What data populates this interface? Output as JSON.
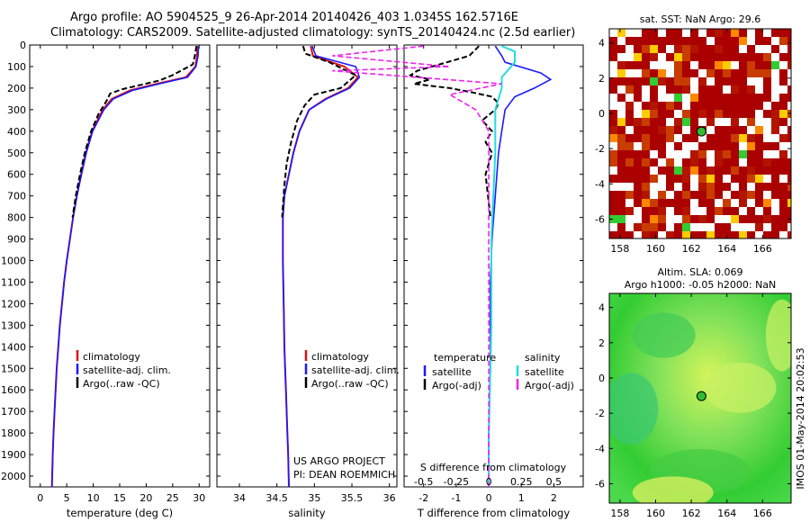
{
  "header": {
    "line1": "Argo profile: AO 5904525_9 26-Apr-2014 20140426_403 1.0345S 162.5716E",
    "line2": "Climatology: CARS2009. Satellite-adjusted climatology: synTS_20140424.nc (2.5d earlier)"
  },
  "stamp": "IMOS 01-May-2014 20:02:53",
  "colors": {
    "climatology": "#dd1111",
    "satellite": "#1a1aff",
    "argo": "#000000",
    "sal_sat": "#22dddd",
    "sal_argo": "#ee22ee"
  },
  "chart_data": [
    {
      "type": "line",
      "id": "temperature",
      "xlabel": "temperature (deg C)",
      "xlim": [
        -2,
        32
      ],
      "xticks": [
        "0",
        "5",
        "10",
        "15",
        "20",
        "25",
        "30"
      ],
      "ylim": [
        0,
        2050
      ],
      "yticks": [
        "0",
        "100",
        "200",
        "300",
        "400",
        "500",
        "600",
        "700",
        "800",
        "900",
        "1000",
        "1100",
        "1200",
        "1300",
        "1400",
        "1500",
        "1600",
        "1700",
        "1800",
        "1900",
        "2000"
      ],
      "legend": [
        "climatology",
        "satellite-adj. clim.",
        "Argo(..raw -QC)"
      ],
      "series": [
        {
          "name": "climatology",
          "x": [
            29.7,
            29.6,
            29.3,
            27.5,
            22,
            17,
            13.5,
            11.8,
            9.8,
            8.6,
            7.7,
            6.9,
            6.2,
            5.6,
            5.0,
            4.5,
            4.1,
            3.7,
            3.4,
            3.1,
            2.9,
            2.7,
            2.5,
            2.35,
            2.2
          ],
          "y": [
            5,
            50,
            100,
            150,
            180,
            210,
            250,
            300,
            400,
            500,
            600,
            700,
            800,
            900,
            1000,
            1100,
            1200,
            1300,
            1400,
            1500,
            1600,
            1700,
            1800,
            1900,
            2050
          ]
        },
        {
          "name": "satellite-adj. clim.",
          "x": [
            29.9,
            29.8,
            29.4,
            27.8,
            22.5,
            17.5,
            13.8,
            12,
            9.9,
            8.7,
            7.8,
            6.9,
            6.2,
            5.6,
            5.0,
            4.5,
            4.1,
            3.7,
            3.4,
            3.1,
            2.9,
            2.7,
            2.5,
            2.35,
            2.2
          ],
          "y": [
            5,
            50,
            100,
            150,
            180,
            210,
            250,
            300,
            400,
            500,
            600,
            700,
            800,
            900,
            1000,
            1100,
            1200,
            1300,
            1400,
            1500,
            1600,
            1700,
            1800,
            1900,
            2050
          ]
        },
        {
          "name": "Argo(..raw -QC)",
          "x": [
            29.5,
            29.2,
            28.8,
            25,
            22.5,
            19,
            15.5,
            13.2,
            12.5,
            11,
            9.6,
            8.4,
            7.5,
            6.7,
            6.1
          ],
          "y": [
            5,
            50,
            90,
            140,
            165,
            185,
            205,
            225,
            260,
            320,
            400,
            500,
            600,
            700,
            800
          ]
        }
      ]
    },
    {
      "type": "line",
      "id": "salinity",
      "xlabel": "salinity",
      "xlim": [
        33.7,
        36.1
      ],
      "xticks": [
        "34",
        "34.5",
        "35",
        "35.5",
        "36"
      ],
      "ylim": [
        0,
        2050
      ],
      "legend": [
        "climatology",
        "satellite-adj. clim.",
        "Argo(..raw -QC)"
      ],
      "annotations": [
        "US ARGO PROJECT",
        "PI: DEAN ROEMMICH"
      ],
      "series": [
        {
          "name": "climatology",
          "x": [
            34.95,
            34.98,
            35.4,
            35.58,
            35.45,
            35.15,
            34.93,
            34.8,
            34.72,
            34.66,
            34.6,
            34.58,
            34.58,
            34.59,
            34.6,
            34.61,
            34.62,
            34.63,
            34.64,
            34.65,
            34.66
          ],
          "y": [
            5,
            50,
            100,
            150,
            200,
            250,
            300,
            400,
            500,
            600,
            700,
            800,
            1000,
            1200,
            1400,
            1500,
            1600,
            1700,
            1800,
            1900,
            2050
          ]
        },
        {
          "name": "satellite-adj. clim.",
          "x": [
            34.97,
            35.02,
            35.55,
            35.6,
            35.47,
            35.16,
            34.93,
            34.8,
            34.72,
            34.66,
            34.6,
            34.58,
            34.58,
            34.59,
            34.6,
            34.61,
            34.62,
            34.63,
            34.64,
            34.65,
            34.66
          ],
          "y": [
            5,
            50,
            100,
            150,
            200,
            250,
            300,
            400,
            500,
            600,
            700,
            800,
            1000,
            1200,
            1400,
            1500,
            1600,
            1700,
            1800,
            1900,
            2050
          ]
        },
        {
          "name": "Argo(..raw -QC)",
          "x": [
            34.85,
            34.88,
            35.2,
            35.55,
            35.35,
            35.0,
            34.87,
            34.77,
            34.69,
            34.63,
            34.6,
            34.58,
            34.57
          ],
          "y": [
            5,
            40,
            80,
            140,
            200,
            230,
            280,
            350,
            450,
            550,
            650,
            750,
            800
          ]
        }
      ]
    },
    {
      "type": "line",
      "id": "difference",
      "xlabel": "T difference from climatology",
      "top_axis_label": "S difference from climatology",
      "xlim": [
        -2.6,
        2.9
      ],
      "xticks": [
        "-2",
        "-1",
        "0",
        "1",
        "2"
      ],
      "sticks": [
        "-0.5",
        "-0.25",
        "0",
        "0.25",
        "0.5"
      ],
      "ylim": [
        0,
        2050
      ],
      "legend_titles": [
        "temperature",
        "salinity"
      ],
      "legend": [
        "satellite",
        "Argo(-adj)",
        "satellite",
        "Argo(-adj)"
      ],
      "series": [
        {
          "name": "satellite",
          "x": [
            0.2,
            0.4,
            0.5,
            1.6,
            1.9,
            1.4,
            0.8,
            0.5,
            0.4,
            0.3,
            0.2,
            0.1,
            0.05,
            0.05,
            0.05,
            0.0,
            0.0
          ],
          "y": [
            5,
            50,
            80,
            130,
            160,
            200,
            240,
            300,
            400,
            500,
            700,
            900,
            1100,
            1300,
            1500,
            1800,
            2050
          ]
        },
        {
          "name": "Argo(-adj)",
          "x": [
            -0.3,
            -0.6,
            -2.2,
            -2.4,
            -1.8,
            -2.3,
            -1.2,
            -0.5,
            0.1,
            0.3,
            0.2,
            -0.2,
            0.1,
            -0.1,
            0.1,
            -0.1,
            0.05
          ],
          "y": [
            5,
            50,
            120,
            140,
            160,
            180,
            200,
            220,
            240,
            270,
            300,
            350,
            400,
            450,
            500,
            600,
            800
          ]
        },
        {
          "name": "satellite",
          "x": [
            0.1,
            0.2,
            0.2,
            0.1,
            0.1,
            0.05,
            0.05,
            0.02,
            0.02,
            0.0,
            0.0
          ],
          "y": [
            5,
            30,
            80,
            150,
            200,
            300,
            500,
            900,
            1300,
            1800,
            2050
          ]
        },
        {
          "name": "Argo(-adj)",
          "x": [
            -0.5,
            -1.2,
            -0.3,
            -1.2,
            0.1,
            -0.3,
            -0.1,
            0.0,
            0.0,
            0.0
          ],
          "y": [
            5,
            50,
            100,
            120,
            180,
            230,
            300,
            400,
            600,
            2050
          ]
        }
      ]
    },
    {
      "type": "heatmap",
      "id": "sst-map",
      "title": "sat. SST: NaN Argo: 29.6",
      "xlim": [
        157.4,
        167.6
      ],
      "ylim": [
        -7.1,
        4.8
      ],
      "xticks": [
        "158",
        "160",
        "162",
        "164",
        "166"
      ],
      "yticks": [
        "4",
        "2",
        "0",
        "-2",
        "-4",
        "-6"
      ],
      "marker": {
        "lon": 162.57,
        "lat": -1.03
      }
    },
    {
      "type": "heatmap",
      "id": "sla-map",
      "title": [
        "Altim. SLA: 0.069",
        "Argo h1000: -0.05 h2000: NaN"
      ],
      "xlim": [
        157.4,
        167.6
      ],
      "ylim": [
        -7.1,
        4.8
      ],
      "xticks": [
        "158",
        "160",
        "162",
        "164",
        "166"
      ],
      "yticks": [
        "4",
        "2",
        "0",
        "-2",
        "-4",
        "-6"
      ],
      "marker": {
        "lon": 162.57,
        "lat": -1.03
      }
    }
  ]
}
